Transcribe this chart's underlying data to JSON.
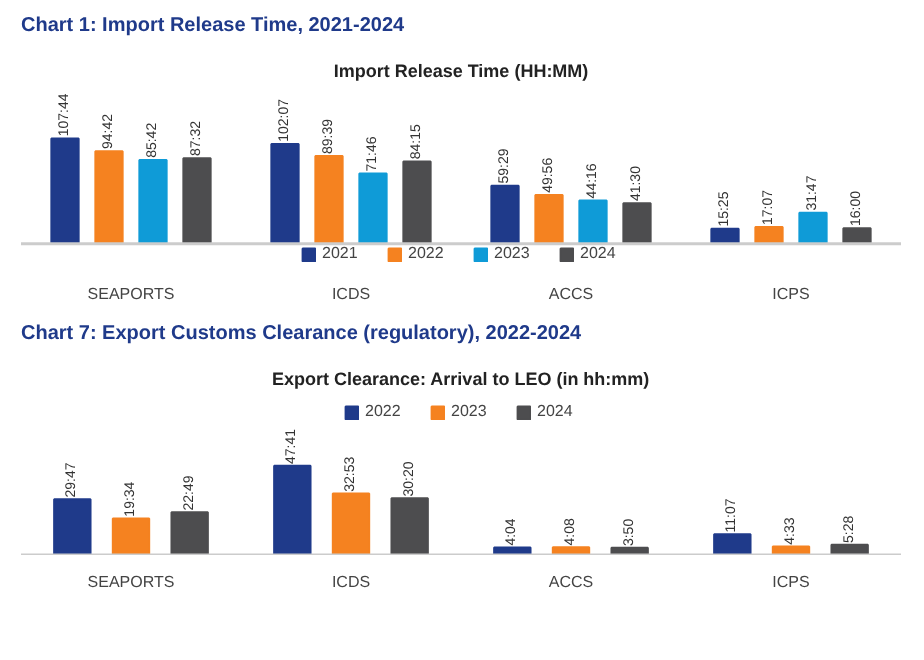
{
  "chart_data": [
    {
      "type": "bar",
      "title": "Chart 1: Import Release Time, 2021-2024",
      "subtitle": "Import Release Time (HH:MM)",
      "categories": [
        "SEAPORTS",
        "ICDS",
        "ACCS",
        "ICPS"
      ],
      "legend": "bottom",
      "grid": false,
      "tick_labels": "x",
      "series": [
        {
          "name": "2021",
          "color": "#1f3a8a",
          "values": [
            107.73,
            102.12,
            59.48,
            15.42
          ],
          "value_labels": [
            "107:44",
            "102:07",
            "59:29",
            "15:25"
          ]
        },
        {
          "name": "2022",
          "color": "#f58220",
          "values": [
            94.7,
            89.65,
            49.93,
            17.12
          ],
          "value_labels": [
            "94:42",
            "89:39",
            "49:56",
            "17:07"
          ]
        },
        {
          "name": "2023",
          "color": "#0f9bd7",
          "values": [
            85.7,
            71.77,
            44.27,
            31.78
          ],
          "value_labels": [
            "85:42",
            "71:46",
            "44:16",
            "31:47"
          ]
        },
        {
          "name": "2024",
          "color": "#4d4d4f",
          "values": [
            87.53,
            84.25,
            41.5,
            16.0
          ],
          "value_labels": [
            "87:32",
            "84:15",
            "41:30",
            "16:00"
          ]
        }
      ]
    },
    {
      "type": "bar",
      "title": "Chart 7: Export Customs Clearance (regulatory), 2022-2024",
      "subtitle": "Export Clearance: Arrival to LEO (in hh:mm)",
      "categories": [
        "SEAPORTS",
        "ICDS",
        "ACCS",
        "ICPS"
      ],
      "legend": "top",
      "grid": false,
      "tick_labels": "x",
      "series": [
        {
          "name": "2022",
          "color": "#1f3a8a",
          "values": [
            29.78,
            47.68,
            4.07,
            11.12
          ],
          "value_labels": [
            "29:47",
            "47:41",
            "4:04",
            "11:07"
          ]
        },
        {
          "name": "2023",
          "color": "#f58220",
          "values": [
            19.57,
            32.88,
            4.13,
            4.55
          ],
          "value_labels": [
            "19:34",
            "32:53",
            "4:08",
            "4:33"
          ]
        },
        {
          "name": "2024",
          "color": "#4d4d4f",
          "values": [
            22.82,
            30.33,
            3.83,
            5.47
          ],
          "value_labels": [
            "22:49",
            "30:20",
            "3:50",
            "5:28"
          ]
        }
      ]
    }
  ]
}
